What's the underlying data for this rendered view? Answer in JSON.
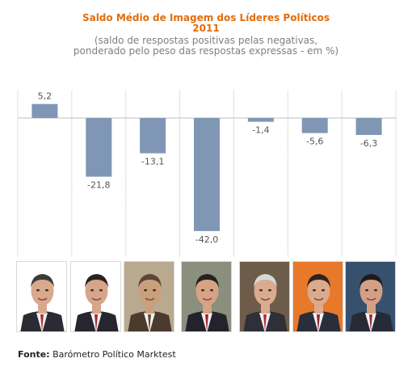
{
  "header": {
    "title_line1": "Saldo Médio de Imagem dos Líderes Políticos",
    "title_line2": "2011",
    "subtitle_line1": "(saldo de respostas positivas pelas negativas,",
    "subtitle_line2": "ponderado pelo peso das respostas expressas - em %)"
  },
  "colors": {
    "title": "#e36c0a",
    "bar": "#7f97b4",
    "separator": "#c0c0c0",
    "zero_line": "#bfbfbf"
  },
  "chart_data": {
    "type": "bar",
    "title": "Saldo Médio de Imagem dos Líderes Políticos 2011",
    "subtitle": "(saldo de respostas positivas pelas negativas, ponderado pelo peso das respostas expressas - em %)",
    "categories": [
      "",
      "",
      "",
      "",
      "",
      "",
      ""
    ],
    "values": [
      5.2,
      -21.8,
      -13.1,
      -42.0,
      -1.4,
      -5.6,
      -6.3
    ],
    "value_labels": [
      "5,2",
      "-21,8",
      "-13,1",
      "-42,0",
      "-1,4",
      "-5,6",
      "-6,3"
    ],
    "xlabel": "",
    "ylabel": "",
    "ylim": [
      -50,
      10
    ],
    "grid": false,
    "legend": "none"
  },
  "photos": [
    {
      "icon": "leader-portrait-1",
      "suit": "#2b2b33",
      "tie": "#b0302f",
      "skin": "#d8a98c",
      "hair": "#3a3a3a",
      "bg": "#ffffff"
    },
    {
      "icon": "leader-portrait-2",
      "suit": "#26262e",
      "tie": "#9c2a2a",
      "skin": "#d7a58a",
      "hair": "#2a2220",
      "bg": "#ffffff"
    },
    {
      "icon": "leader-portrait-3",
      "suit": "#4a3b2e",
      "tie": "#6b4a2f",
      "skin": "#caa07c",
      "hair": "#5a4637",
      "bg": "#b9a98e"
    },
    {
      "icon": "leader-portrait-4",
      "suit": "#22232b",
      "tie": "#a32222",
      "skin": "#d6a384",
      "hair": "#262020",
      "bg": "#8a8f7e"
    },
    {
      "icon": "leader-portrait-5",
      "suit": "#2f2f38",
      "tie": "#b8283a",
      "skin": "#d9ab8f",
      "hair": "#d8d8d8",
      "bg": "#6d5c4a"
    },
    {
      "icon": "leader-portrait-6",
      "suit": "#2a2d3a",
      "tie": "#8a2530",
      "skin": "#dba98b",
      "hair": "#2c2420",
      "bg": "#e8782a"
    },
    {
      "icon": "leader-portrait-7",
      "suit": "#252a36",
      "tie": "#9a2c34",
      "skin": "#d2a085",
      "hair": "#1f1b1b",
      "bg": "#37506e"
    }
  ],
  "footer": {
    "label": "Fonte:",
    "text": "Barómetro Político Marktest"
  }
}
